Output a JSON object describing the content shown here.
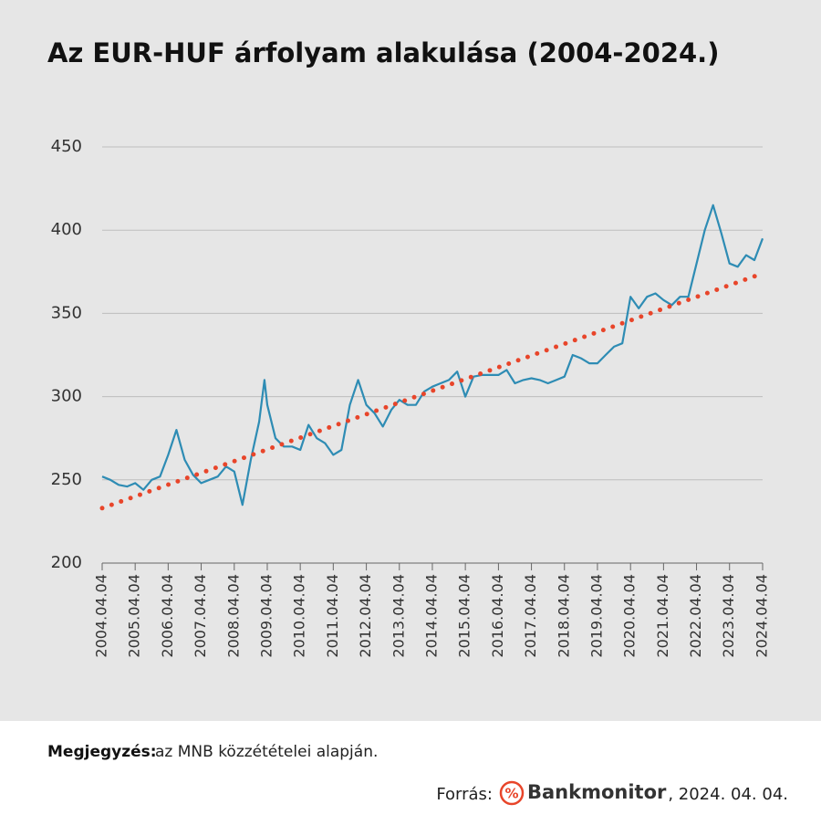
{
  "chart_data": {
    "type": "line",
    "title": "Az EUR-HUF árfolyam alakulása (2004-2024.)",
    "x": [
      "2004.04.04",
      "2004.07.04",
      "2004.10.04",
      "2005.01.04",
      "2005.04.04",
      "2005.07.04",
      "2005.10.04",
      "2006.01.04",
      "2006.04.04",
      "2006.07.04",
      "2006.10.04",
      "2007.01.04",
      "2007.04.04",
      "2007.07.04",
      "2007.10.04",
      "2008.01.04",
      "2008.04.04",
      "2008.07.04",
      "2008.10.04",
      "2009.01.04",
      "2009.03.04",
      "2009.04.04",
      "2009.07.04",
      "2009.10.04",
      "2010.01.04",
      "2010.04.04",
      "2010.07.04",
      "2010.10.04",
      "2011.01.04",
      "2011.04.04",
      "2011.07.04",
      "2011.10.04",
      "2012.01.04",
      "2012.04.04",
      "2012.07.04",
      "2012.10.04",
      "2013.01.04",
      "2013.04.04",
      "2013.07.04",
      "2013.10.04",
      "2014.01.04",
      "2014.04.04",
      "2014.07.04",
      "2014.10.04",
      "2015.01.04",
      "2015.04.04",
      "2015.07.04",
      "2015.10.04",
      "2016.01.04",
      "2016.04.04",
      "2016.07.04",
      "2016.10.04",
      "2017.01.04",
      "2017.04.04",
      "2017.07.04",
      "2017.10.04",
      "2018.01.04",
      "2018.04.04",
      "2018.07.04",
      "2018.10.04",
      "2019.01.04",
      "2019.04.04",
      "2019.07.04",
      "2019.10.04",
      "2020.01.04",
      "2020.04.04",
      "2020.07.04",
      "2020.10.04",
      "2021.01.04",
      "2021.04.04",
      "2021.07.04",
      "2021.10.04",
      "2022.01.04",
      "2022.04.04",
      "2022.07.04",
      "2022.10.04",
      "2023.01.04",
      "2023.04.04",
      "2023.07.04",
      "2023.10.04",
      "2024.01.04",
      "2024.04.04"
    ],
    "series": [
      {
        "color": "#2e8cb4",
        "values": [
          252,
          250,
          247,
          246,
          248,
          244,
          250,
          252,
          265,
          280,
          262,
          253,
          248,
          250,
          252,
          258,
          255,
          235,
          262,
          285,
          310,
          295,
          275,
          270,
          270,
          268,
          283,
          275,
          272,
          265,
          268,
          295,
          310,
          295,
          290,
          282,
          292,
          298,
          295,
          295,
          303,
          306,
          308,
          310,
          315,
          300,
          312,
          313,
          313,
          313,
          316,
          308,
          310,
          311,
          310,
          308,
          310,
          312,
          325,
          323,
          320,
          320,
          325,
          330,
          332,
          360,
          353,
          360,
          362,
          358,
          355,
          360,
          360,
          380,
          400,
          415,
          398,
          380,
          378,
          385,
          382,
          395
        ]
      },
      {
        "color": "#e8452a",
        "style": "dotted",
        "x": [
          "2004.04.04",
          "2024.04.04"
        ],
        "values": [
          233,
          374
        ]
      }
    ],
    "xlim": [
      "2004.04.04",
      "2024.04.04"
    ],
    "xticks": [
      "2004.04.04",
      "2005.04.04",
      "2006.04.04",
      "2007.04.04",
      "2008.04.04",
      "2009.04.04",
      "2010.04.04",
      "2011.04.04",
      "2012.04.04",
      "2013.04.04",
      "2014.04.04",
      "2015.04.04",
      "2016.04.04",
      "2017.04.04",
      "2018.04.04",
      "2019.04.04",
      "2020.04.04",
      "2021.04.04",
      "2022.04.04",
      "2023.04.04",
      "2024.04.04"
    ],
    "ylim": [
      200,
      450
    ],
    "yticks": [
      200,
      250,
      300,
      350,
      400,
      450
    ],
    "grid": true
  },
  "footer": {
    "note_label": "Megjegyzés:",
    "note": "az MNB közzétételei alapján.",
    "source_label": "Forrás:",
    "logo_symbol": "%",
    "logo_text": "Bankmonitor",
    "date": ", 2024. 04. 04."
  }
}
